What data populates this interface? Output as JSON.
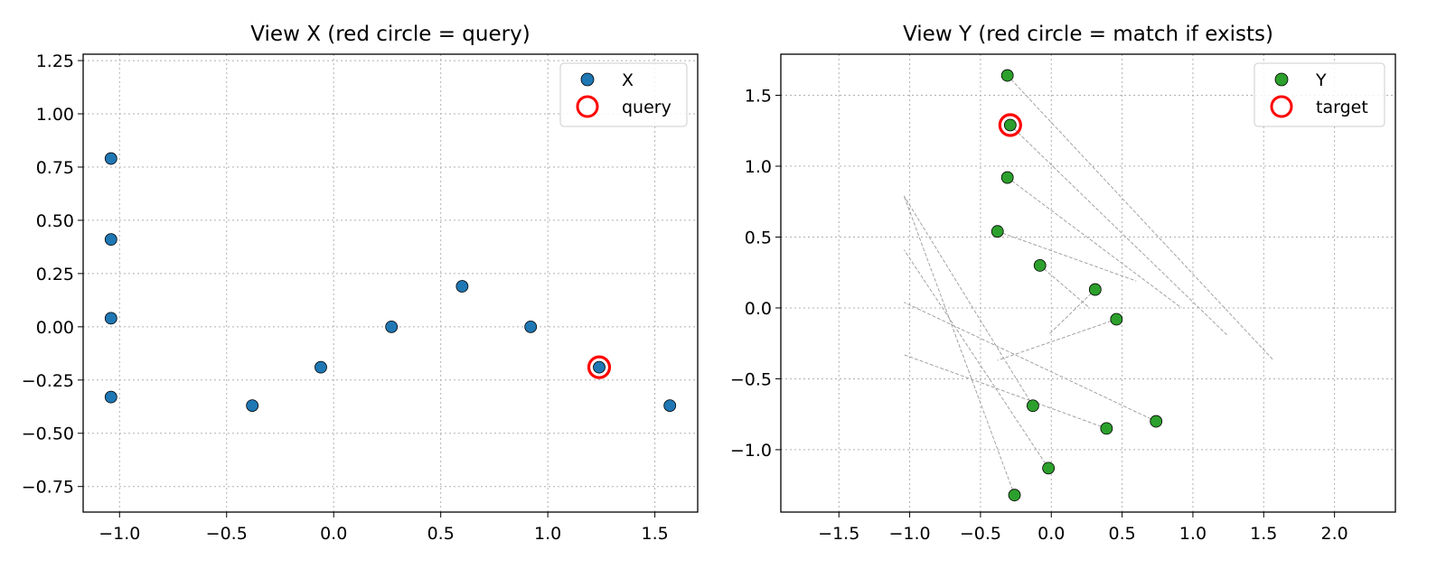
{
  "chart_data": [
    {
      "type": "scatter",
      "title": "View X (red circle = query)",
      "xlabel": "",
      "ylabel": "",
      "xlim": [
        -1.17,
        1.7
      ],
      "ylim": [
        -0.87,
        1.28
      ],
      "xticks": [
        -1.0,
        -0.5,
        0.0,
        0.5,
        1.0,
        1.5
      ],
      "xtick_labels": [
        "−1.0",
        "−0.5",
        "0.0",
        "0.5",
        "1.0",
        "1.5"
      ],
      "yticks": [
        -0.75,
        -0.5,
        -0.25,
        0.0,
        0.25,
        0.5,
        0.75,
        1.0,
        1.25
      ],
      "ytick_labels": [
        "−0.75",
        "−0.50",
        "−0.25",
        "0.00",
        "0.25",
        "0.50",
        "0.75",
        "1.00",
        "1.25"
      ],
      "grid": true,
      "legend_position": "top-right",
      "series": [
        {
          "name": "X",
          "color": "#1f77b4",
          "marker": "filled-circle",
          "points": [
            {
              "x": -1.04,
              "y": 0.79
            },
            {
              "x": -1.04,
              "y": 0.41
            },
            {
              "x": -1.04,
              "y": 0.04
            },
            {
              "x": -1.04,
              "y": -0.33
            },
            {
              "x": -0.38,
              "y": -0.37
            },
            {
              "x": -0.06,
              "y": -0.19
            },
            {
              "x": 0.27,
              "y": 0.0
            },
            {
              "x": 0.6,
              "y": 0.19
            },
            {
              "x": 0.92,
              "y": 0.0
            },
            {
              "x": 1.24,
              "y": -0.19
            },
            {
              "x": 1.57,
              "y": -0.37
            }
          ]
        },
        {
          "name": "query",
          "color": "#ff0000",
          "marker": "hollow-ring",
          "points": [
            {
              "x": 1.24,
              "y": -0.19
            }
          ]
        }
      ]
    },
    {
      "type": "scatter",
      "title": "View Y (red circle = match if exists)",
      "xlabel": "",
      "ylabel": "",
      "xlim": [
        -1.91,
        2.43
      ],
      "ylim": [
        -1.44,
        1.79
      ],
      "xticks": [
        -1.5,
        -1.0,
        -0.5,
        0.0,
        0.5,
        1.0,
        1.5,
        2.0
      ],
      "xtick_labels": [
        "−1.5",
        "−1.0",
        "−0.5",
        "0.0",
        "0.5",
        "1.0",
        "1.5",
        "2.0"
      ],
      "yticks": [
        -1.0,
        -0.5,
        0.0,
        0.5,
        1.0,
        1.5
      ],
      "ytick_labels": [
        "−1.0",
        "−0.5",
        "0.0",
        "0.5",
        "1.0",
        "1.5"
      ],
      "grid": true,
      "legend_position": "top-right",
      "series": [
        {
          "name": "Y",
          "color": "#2ca02c",
          "marker": "filled-circle",
          "points": [
            {
              "x": -0.31,
              "y": 1.64
            },
            {
              "x": -0.29,
              "y": 1.29
            },
            {
              "x": -0.31,
              "y": 0.92
            },
            {
              "x": -0.38,
              "y": 0.54
            },
            {
              "x": -0.08,
              "y": 0.3
            },
            {
              "x": 0.31,
              "y": 0.13
            },
            {
              "x": 0.46,
              "y": -0.08
            },
            {
              "x": -0.13,
              "y": -0.69
            },
            {
              "x": 0.74,
              "y": -0.8
            },
            {
              "x": 0.39,
              "y": -0.85
            },
            {
              "x": -0.02,
              "y": -1.13
            },
            {
              "x": -0.26,
              "y": -1.32
            }
          ]
        },
        {
          "name": "target",
          "color": "#ff0000",
          "marker": "hollow-ring",
          "points": [
            {
              "x": -0.29,
              "y": 1.29
            }
          ]
        }
      ],
      "connections": [
        {
          "from": [
            -0.31,
            1.64
          ],
          "to": [
            1.57,
            -0.37
          ]
        },
        {
          "from": [
            -0.29,
            1.29
          ],
          "to": [
            1.24,
            -0.19
          ]
        },
        {
          "from": [
            -0.31,
            0.92
          ],
          "to": [
            0.92,
            0.0
          ]
        },
        {
          "from": [
            -0.38,
            0.54
          ],
          "to": [
            0.6,
            0.19
          ]
        },
        {
          "from": [
            -0.08,
            0.3
          ],
          "to": [
            0.27,
            0.0
          ]
        },
        {
          "from": [
            0.46,
            -0.08
          ],
          "to": [
            -0.38,
            -0.37
          ]
        },
        {
          "from": [
            0.31,
            0.13
          ],
          "to": [
            -0.02,
            -0.19
          ]
        },
        {
          "from": [
            -0.13,
            -0.69
          ],
          "to": [
            -1.04,
            0.79
          ]
        },
        {
          "from": [
            -0.02,
            -1.13
          ],
          "to": [
            -1.04,
            0.41
          ]
        },
        {
          "from": [
            0.74,
            -0.8
          ],
          "to": [
            -1.04,
            0.04
          ]
        },
        {
          "from": [
            0.39,
            -0.85
          ],
          "to": [
            -1.04,
            -0.33
          ]
        },
        {
          "from": [
            -0.26,
            -1.32
          ],
          "to": [
            -1.04,
            0.79
          ]
        }
      ]
    }
  ]
}
